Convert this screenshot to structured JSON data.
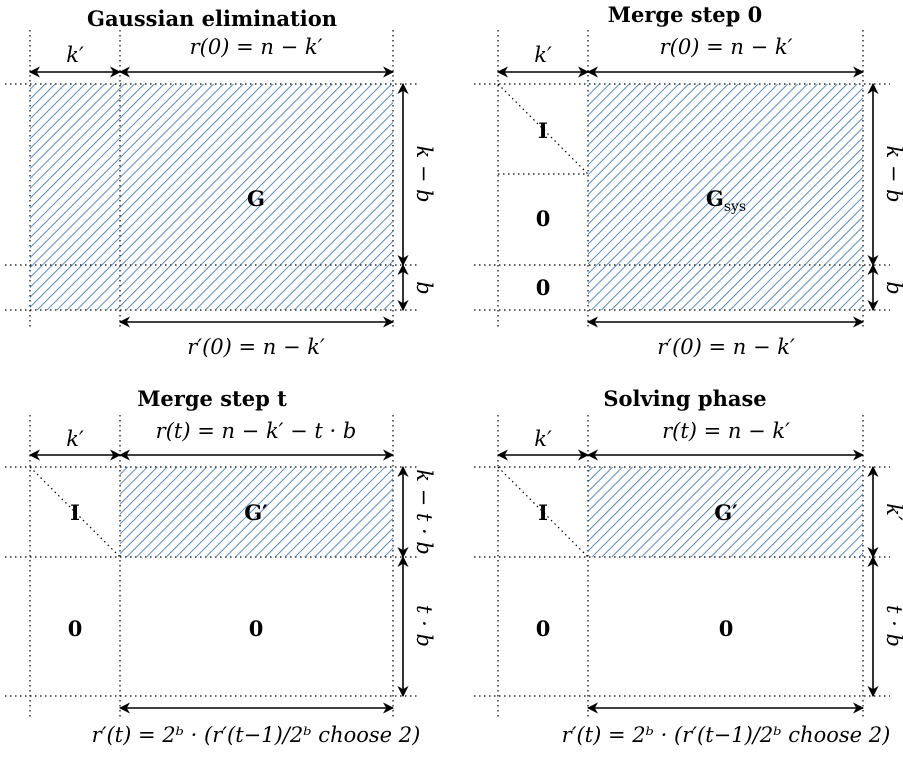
{
  "panels": [
    {
      "title": "Gaussian elimination",
      "top_left_label": "k′",
      "top_right_label": "r(0) = n − k′",
      "right_top_label": "k − b",
      "right_bottom_label": "b",
      "bottom_label": "r′(0) = n − k′",
      "main_label": "G",
      "main_sub": ""
    },
    {
      "title": "Merge step 0",
      "top_left_label": "k′",
      "top_right_label": "r(0) = n − k′",
      "right_top_label": "k − b",
      "right_bottom_label": "b",
      "bottom_label": "r′(0) = n − k′",
      "identity_label": "I",
      "zero_labels": [
        "0",
        "0"
      ],
      "main_label": "G",
      "main_sub": "sys"
    },
    {
      "title": "Merge step t",
      "top_left_label": "k′",
      "top_right_label": "r(t) = n − k′ − t · b",
      "right_top_label": "k − t · b",
      "right_bottom_label": "t · b",
      "bottom_label": "r′(t) = 2ᵇ · (r′(t−1)/2ᵇ choose 2)",
      "identity_label": "I",
      "zero_labels": [
        "0",
        "0"
      ],
      "main_label": "G′"
    },
    {
      "title": "Solving phase",
      "top_left_label": "k′",
      "top_right_label": "r(t) = n − k′",
      "right_top_label": "k′",
      "right_bottom_label": "t · b",
      "bottom_label": "r′(t) = 2ᵇ · (r′(t−1)/2ᵇ choose 2)",
      "identity_label": "I",
      "zero_labels": [
        "0",
        "0"
      ],
      "main_label": "G′"
    }
  ],
  "colors": {
    "hatch": "#2f6fb0"
  }
}
